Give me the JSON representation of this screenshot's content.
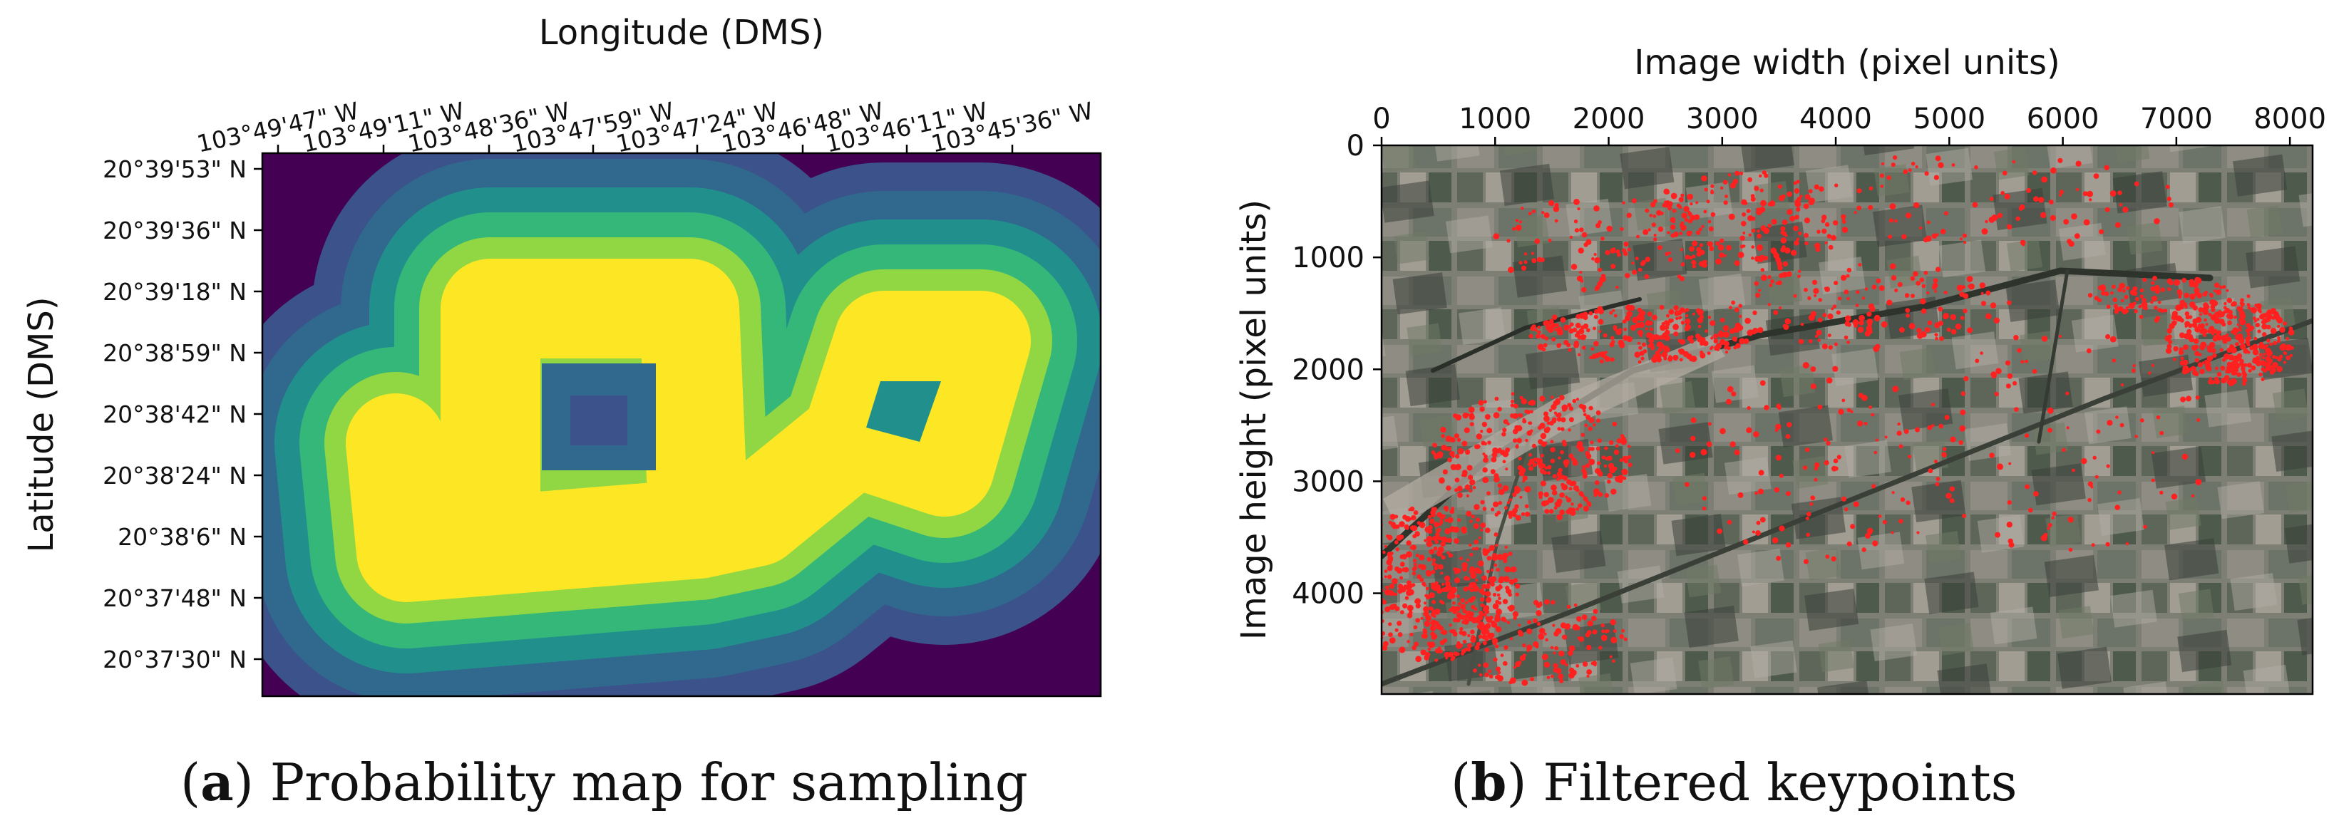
{
  "chart_data": [
    {
      "type": "heatmap",
      "title": "",
      "xlabel": "Longitude (DMS)",
      "ylabel": "Latitude (DMS)",
      "x_tick_labels": [
        "103°49'47\" W",
        "103°49'11\" W",
        "103°48'36\" W",
        "103°47'59\" W",
        "103°47'24\" W",
        "103°46'48\" W",
        "103°46'11\" W",
        "103°45'36\" W"
      ],
      "y_tick_labels": [
        "20°39'53\" N",
        "20°39'36\" N",
        "20°39'18\" N",
        "20°38'59\" N",
        "20°38'42\" N",
        "20°38'24\" N",
        "20°38'6\" N",
        "20°37'48\" N",
        "20°37'30\" N"
      ],
      "colormap": [
        "#440154",
        "#3b528b",
        "#31688e",
        "#21908d",
        "#35b779",
        "#90d743",
        "#fde725"
      ],
      "caption_label": "a",
      "caption_text": "Probability map for sampling"
    },
    {
      "type": "scatter",
      "title": "",
      "xlabel": "Image width (pixel units)",
      "ylabel": "Image height (pixel units)",
      "x_ticks": [
        0,
        1000,
        2000,
        3000,
        4000,
        5000,
        6000,
        7000,
        8000
      ],
      "y_ticks": [
        0,
        1000,
        2000,
        3000,
        4000
      ],
      "xlim": [
        0,
        8200
      ],
      "ylim": [
        4900,
        0
      ],
      "point_color": "#ff2020",
      "caption_label": "b",
      "caption_text": "Filtered keypoints"
    }
  ]
}
